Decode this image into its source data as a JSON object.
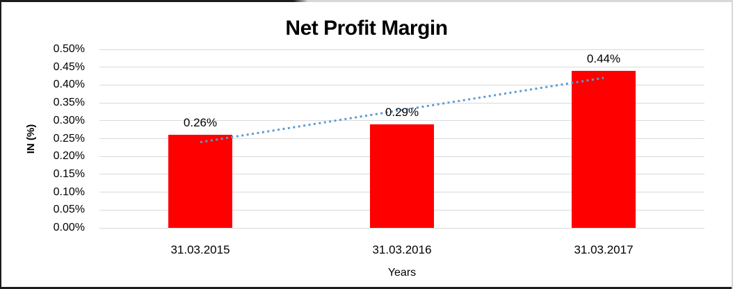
{
  "chart_data": {
    "type": "bar",
    "title": "Net Profit Margin",
    "xlabel": "Years",
    "ylabel": "IN (%)",
    "categories": [
      "31.03.2015",
      "31.03.2016",
      "31.03.2017"
    ],
    "values": [
      0.26,
      0.29,
      0.44
    ],
    "data_labels": [
      "0.26%",
      "0.29%",
      "0.44%"
    ],
    "ylim": [
      0,
      0.5
    ],
    "ytick_step": 0.05,
    "ytick_labels": [
      "0.50%",
      "0.45%",
      "0.40%",
      "0.35%",
      "0.30%",
      "0.25%",
      "0.20%",
      "0.15%",
      "0.10%",
      "0.05%",
      "0.00%"
    ],
    "grid": "horizontal",
    "legend": "none",
    "bar_color": "#ff0000",
    "gridline_color": "#d9d9d9",
    "trendline": {
      "style": "dotted",
      "color": "#5b9bd5",
      "start_value": 0.24,
      "end_value": 0.42,
      "start_category_index": 0,
      "end_category_index": 2
    }
  }
}
